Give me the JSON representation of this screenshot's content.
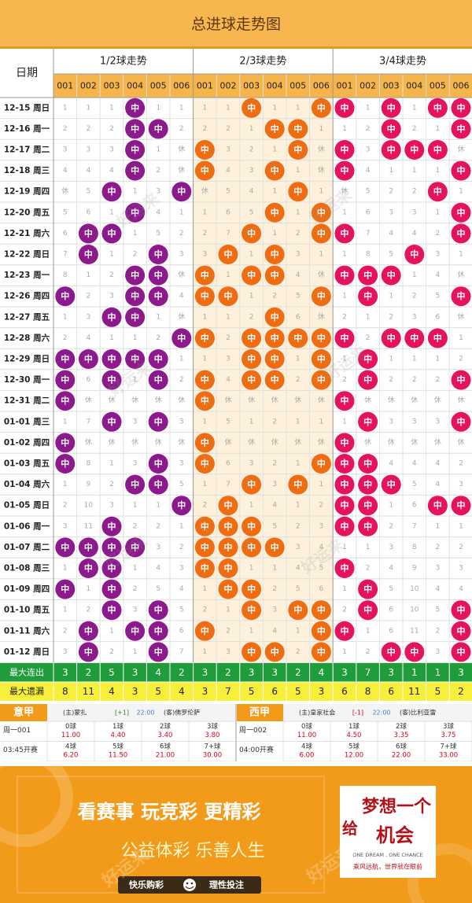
{
  "title": "总进球走势图",
  "date_header": "日期",
  "groups": [
    {
      "label": "1/2球走势",
      "color": "#8c1a8c"
    },
    {
      "label": "2/3球走势",
      "color": "#ee6c12"
    },
    {
      "label": "3/4球走势",
      "color": "#e5135d"
    }
  ],
  "col_labels": [
    "001",
    "002",
    "003",
    "004",
    "005",
    "006"
  ],
  "hit_text": "中",
  "rest_text": "休",
  "rows": [
    {
      "date": "12-15 周日",
      "g": [
        [
          "1",
          "1",
          "1",
          "中",
          "1",
          "1"
        ],
        [
          "1",
          "1",
          "中",
          "1",
          "1",
          "中"
        ],
        [
          "中",
          "1",
          "中",
          "1",
          "中",
          "中"
        ]
      ]
    },
    {
      "date": "12-16 周一",
      "g": [
        [
          "2",
          "2",
          "2",
          "中",
          "中",
          "2"
        ],
        [
          "2",
          "2",
          "1",
          "中",
          "中",
          "1"
        ],
        [
          "1",
          "2",
          "中",
          "2",
          "1",
          "中"
        ]
      ]
    },
    {
      "date": "12-17 周二",
      "g": [
        [
          "3",
          "3",
          "3",
          "中",
          "1",
          "休"
        ],
        [
          "中",
          "3",
          "2",
          "1",
          "中",
          "休"
        ],
        [
          "中",
          "3",
          "中",
          "中",
          "中",
          "休"
        ]
      ]
    },
    {
      "date": "12-18 周三",
      "g": [
        [
          "4",
          "4",
          "4",
          "中",
          "2",
          "休"
        ],
        [
          "中",
          "4",
          "3",
          "中",
          "1",
          "休"
        ],
        [
          "中",
          "4",
          "1",
          "1",
          "1",
          "中"
        ]
      ]
    },
    {
      "date": "12-19 周四",
      "g": [
        [
          "休",
          "5",
          "中",
          "1",
          "3",
          "中"
        ],
        [
          "休",
          "5",
          "4",
          "1",
          "中",
          "1"
        ],
        [
          "休",
          "5",
          "2",
          "2",
          "中",
          "1"
        ]
      ]
    },
    {
      "date": "12-20 周五",
      "g": [
        [
          "5",
          "6",
          "1",
          "中",
          "4",
          "1"
        ],
        [
          "1",
          "6",
          "5",
          "中",
          "1",
          "中"
        ],
        [
          "1",
          "6",
          "3",
          "3",
          "1",
          "中"
        ]
      ]
    },
    {
      "date": "12-21 周六",
      "g": [
        [
          "6",
          "中",
          "中",
          "1",
          "5",
          "2"
        ],
        [
          "2",
          "7",
          "中",
          "1",
          "2",
          "中"
        ],
        [
          "中",
          "7",
          "4",
          "4",
          "2",
          "中"
        ]
      ]
    },
    {
      "date": "12-22 周日",
      "g": [
        [
          "7",
          "中",
          "1",
          "2",
          "中",
          "3"
        ],
        [
          "3",
          "中",
          "1",
          "中",
          "3",
          "1"
        ],
        [
          "1",
          "8",
          "5",
          "中",
          "3",
          "1"
        ]
      ]
    },
    {
      "date": "12-23 周一",
      "g": [
        [
          "8",
          "1",
          "2",
          "中",
          "中",
          "休"
        ],
        [
          "中",
          "1",
          "中",
          "中",
          "4",
          "休"
        ],
        [
          "中",
          "中",
          "中",
          "1",
          "4",
          "休"
        ]
      ]
    },
    {
      "date": "12-26 周四",
      "g": [
        [
          "中",
          "2",
          "3",
          "中",
          "中",
          "4"
        ],
        [
          "中",
          "中",
          "1",
          "2",
          "5",
          "中"
        ],
        [
          "1",
          "中",
          "1",
          "2",
          "5",
          "中"
        ]
      ]
    },
    {
      "date": "12-27 周五",
      "g": [
        [
          "1",
          "3",
          "中",
          "中",
          "1",
          "休"
        ],
        [
          "1",
          "1",
          "2",
          "中",
          "6",
          "休"
        ],
        [
          "2",
          "1",
          "2",
          "3",
          "6",
          "休"
        ]
      ]
    },
    {
      "date": "12-28 周六",
      "g": [
        [
          "2",
          "4",
          "1",
          "1",
          "2",
          "中"
        ],
        [
          "中",
          "2",
          "中",
          "中",
          "中",
          "中"
        ],
        [
          "中",
          "2",
          "中",
          "中",
          "中",
          "1"
        ]
      ]
    },
    {
      "date": "12-29 周日",
      "g": [
        [
          "中",
          "中",
          "中",
          "中",
          "中",
          "1"
        ],
        [
          "1",
          "3",
          "中",
          "中",
          "1",
          "中"
        ],
        [
          "1",
          "中",
          "1",
          "1",
          "1",
          "2"
        ]
      ]
    },
    {
      "date": "12-30 周一",
      "g": [
        [
          "中",
          "6",
          "中",
          "1",
          "中",
          "2"
        ],
        [
          "中",
          "4",
          "中",
          "中",
          "2",
          "中"
        ],
        [
          "2",
          "中",
          "2",
          "2",
          "2",
          "中"
        ]
      ]
    },
    {
      "date": "12-31 周二",
      "g": [
        [
          "中",
          "休",
          "休",
          "休",
          "休",
          "休"
        ],
        [
          "中",
          "休",
          "休",
          "休",
          "休",
          "休"
        ],
        [
          "中",
          "休",
          "休",
          "休",
          "休",
          "休"
        ]
      ]
    },
    {
      "date": "01-01 周三",
      "g": [
        [
          "1",
          "7",
          "中",
          "3",
          "中",
          "3"
        ],
        [
          "1",
          "5",
          "1",
          "2",
          "1",
          "1"
        ],
        [
          "1",
          "中",
          "3",
          "3",
          "3",
          "中"
        ]
      ]
    },
    {
      "date": "01-02 周四",
      "g": [
        [
          "中",
          "休",
          "休",
          "休",
          "休",
          "休"
        ],
        [
          "中",
          "休",
          "休",
          "休",
          "休",
          "休"
        ],
        [
          "中",
          "休",
          "休",
          "休",
          "休",
          "休"
        ]
      ]
    },
    {
      "date": "01-03 周五",
      "g": [
        [
          "中",
          "8",
          "1",
          "3",
          "中",
          "3"
        ],
        [
          "中",
          "6",
          "3",
          "2",
          "1",
          "中"
        ],
        [
          "中",
          "中",
          "4",
          "4",
          "4",
          "2"
        ]
      ]
    },
    {
      "date": "01-04 周六",
      "g": [
        [
          "1",
          "9",
          "2",
          "中",
          "中",
          "5"
        ],
        [
          "1",
          "7",
          "中",
          "3",
          "中",
          "1"
        ],
        [
          "中",
          "中",
          "中",
          "5",
          "4",
          "3"
        ]
      ]
    },
    {
      "date": "01-05 周日",
      "g": [
        [
          "2",
          "10",
          "3",
          "1",
          "1",
          "中"
        ],
        [
          "2",
          "中",
          "1",
          "4",
          "1",
          "2"
        ],
        [
          "中",
          "中",
          "1",
          "6",
          "中",
          "中"
        ]
      ]
    },
    {
      "date": "01-06 周一",
      "g": [
        [
          "3",
          "11",
          "中",
          "2",
          "2",
          "1"
        ],
        [
          "中",
          "中",
          "中",
          "5",
          "2",
          "3"
        ],
        [
          "中",
          "中",
          "2",
          "7",
          "1",
          "1"
        ]
      ]
    },
    {
      "date": "01-07 周二",
      "g": [
        [
          "中",
          "中",
          "中",
          "中",
          "3",
          "2"
        ],
        [
          "中",
          "中",
          "中",
          "中",
          "3",
          "4"
        ],
        [
          "1",
          "1",
          "3",
          "8",
          "2",
          "2"
        ]
      ]
    },
    {
      "date": "01-08 周三",
      "g": [
        [
          "1",
          "中",
          "中",
          "1",
          "4",
          "3"
        ],
        [
          "中",
          "中",
          "1",
          "1",
          "4",
          "5"
        ],
        [
          "中",
          "2",
          "4",
          "9",
          "3",
          "3"
        ]
      ]
    },
    {
      "date": "01-09 周四",
      "g": [
        [
          "中",
          "1",
          "中",
          "2",
          "5",
          "4"
        ],
        [
          "1",
          "中",
          "中",
          "2",
          "5",
          "6"
        ],
        [
          "1",
          "中",
          "5",
          "10",
          "4",
          "4"
        ]
      ]
    },
    {
      "date": "01-10 周五",
      "g": [
        [
          "1",
          "2",
          "中",
          "3",
          "中",
          "5"
        ],
        [
          "2",
          "1",
          "中",
          "3",
          "中",
          "中"
        ],
        [
          "2",
          "中",
          "6",
          "10",
          "5",
          "中"
        ]
      ]
    },
    {
      "date": "01-11 周六",
      "g": [
        [
          "2",
          "中",
          "1",
          "中",
          "中",
          "6"
        ],
        [
          "中",
          "2",
          "1",
          "4",
          "1",
          "中"
        ],
        [
          "中",
          "1",
          "6",
          "11",
          "2",
          "中"
        ]
      ]
    },
    {
      "date": "01-12 周日",
      "g": [
        [
          "3",
          "中",
          "2",
          "1",
          "中",
          "7"
        ],
        [
          "1",
          "3",
          "中",
          "中",
          "2",
          "中"
        ],
        [
          "1",
          "2",
          "中",
          "中",
          "3",
          "中"
        ]
      ]
    }
  ],
  "footer": {
    "max_streak_label": "最大连出",
    "max_streak": [
      "3",
      "2",
      "5",
      "3",
      "4",
      "2",
      "3",
      "2",
      "3",
      "3",
      "2",
      "4",
      "3",
      "7",
      "3",
      "1",
      "1",
      "3"
    ],
    "max_miss_label": "最大遗漏",
    "max_miss": [
      "8",
      "11",
      "4",
      "3",
      "5",
      "4",
      "3",
      "7",
      "5",
      "6",
      "5",
      "3",
      "6",
      "8",
      "6",
      "11",
      "5",
      "2"
    ]
  },
  "odds": [
    {
      "league": "意甲",
      "home": "(主)蒙扎",
      "handicap": "[+1]",
      "time": "22:00",
      "away": "(客)佛罗伦萨",
      "match_no": "周一001",
      "kickoff": "03:45开赛",
      "r1": [
        {
          "label": "0球",
          "odd": "11.00"
        },
        {
          "label": "1球",
          "odd": "4.40"
        },
        {
          "label": "2球",
          "odd": "3.40"
        },
        {
          "label": "3球",
          "odd": "3.80"
        }
      ],
      "r2": [
        {
          "label": "4球",
          "odd": "6.20"
        },
        {
          "label": "5球",
          "odd": "11.50"
        },
        {
          "label": "6球",
          "odd": "21.00"
        },
        {
          "label": "7+球",
          "odd": "30.00"
        }
      ]
    },
    {
      "league": "西甲",
      "home": "(主)皇家社会",
      "handicap": "[-1]",
      "time": "22:00",
      "away": "(客)比利亚雷",
      "match_no": "周一002",
      "kickoff": "04:00开赛",
      "r1": [
        {
          "label": "0球",
          "odd": "11.00"
        },
        {
          "label": "1球",
          "odd": "4.50"
        },
        {
          "label": "2球",
          "odd": "3.35"
        },
        {
          "label": "3球",
          "odd": "3.75"
        }
      ],
      "r2": [
        {
          "label": "4球",
          "odd": "6.00"
        },
        {
          "label": "5球",
          "odd": "12.00"
        },
        {
          "label": "6球",
          "odd": "22.00"
        },
        {
          "label": "7+球",
          "odd": "33.00"
        }
      ]
    }
  ],
  "promo": {
    "slogan1": "看赛事  玩竞彩  更精彩",
    "slogan2": "公益体彩  乐善人生",
    "bottom1": "快乐购彩",
    "bottom2": "理性投注",
    "card_title_a": "给",
    "card_title_b": "梦想一个",
    "card_title_c": "机会",
    "card_en": "ONE DREAM , ONE CHANCE",
    "card_sub": "乘风远航，世界就在眼前"
  },
  "watermark": "好运来"
}
